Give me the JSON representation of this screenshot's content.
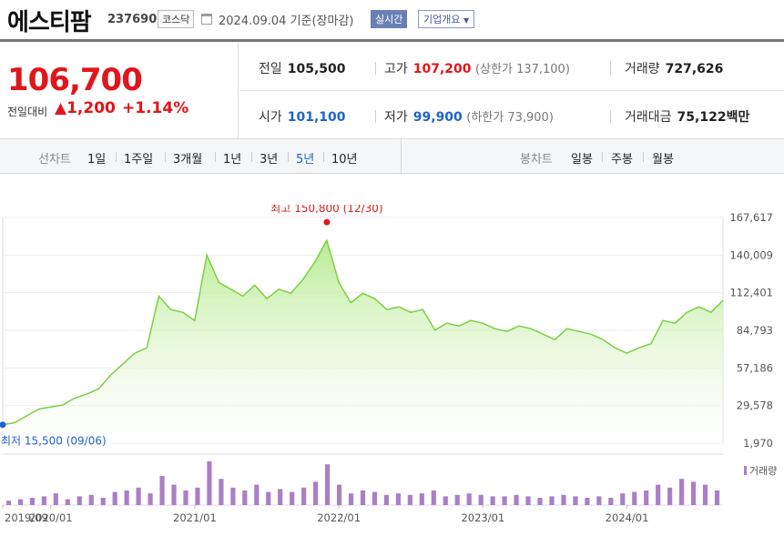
{
  "header": {
    "company": "에스티팜",
    "code": "237690",
    "market": "코스닥",
    "date": "2024.09.04  기준(장마감)",
    "realtime": "실시간",
    "company_info": "기업개요"
  },
  "price": {
    "current": "106,700",
    "change_label": "전일대비",
    "change": "▲1,200",
    "change_pct": "+1.14%",
    "prev_label": "전일",
    "prev": "105,500",
    "high_label": "고가",
    "high": "107,200",
    "upper_limit": "(상한가 137,100)",
    "volume_label": "거래량",
    "volume": "727,626",
    "open_label": "시가",
    "open": "101,100",
    "low_label": "저가",
    "low": "99,900",
    "lower_limit": "(하한가 73,900)",
    "amount_label": "거래대금",
    "amount": "75,122",
    "amount_unit": "백만"
  },
  "tabs": {
    "line_label": "선차트",
    "line_periods": [
      "1일",
      "1주일",
      "3개월",
      "1년",
      "3년",
      "5년",
      "10년"
    ],
    "selected": "5년",
    "candle_label": "봉차트",
    "candle_periods": [
      "일봉",
      "주봉",
      "월봉"
    ]
  },
  "colors": {
    "up": "#e0161b",
    "down": "#1e64c8",
    "line": "#7ccf43",
    "area_top": "#b5ea8c",
    "volume_bar": "#a97fc6"
  },
  "chart_data": {
    "type": "area",
    "y_ticks": [
      "167,617",
      "140,009",
      "112,401",
      "84,793",
      "57,186",
      "29,578",
      "1,970"
    ],
    "ylim": [
      1970,
      167617
    ],
    "x_ticks": [
      "2019/09",
      "2020/01",
      "2021/01",
      "2022/01",
      "2023/01",
      "2024/01"
    ],
    "max_label": "최고 150,800 (12/30)",
    "min_label": "최저 15,500 (09/06)",
    "volume_legend": "거래량",
    "series": [
      {
        "x": [
          "2019/09",
          "2019/10",
          "2019/11",
          "2019/12",
          "2020/01",
          "2020/02",
          "2020/03",
          "2020/04",
          "2020/05",
          "2020/06",
          "2020/07",
          "2020/08",
          "2020/09",
          "2020/10",
          "2020/11",
          "2020/12",
          "2021/01",
          "2021/02",
          "2021/03",
          "2021/04",
          "2021/05",
          "2021/06",
          "2021/07",
          "2021/08",
          "2021/09",
          "2021/10",
          "2021/11",
          "2021/12",
          "2022/01",
          "2022/02",
          "2022/03",
          "2022/04",
          "2022/05",
          "2022/06",
          "2022/07",
          "2022/08",
          "2022/09",
          "2022/10",
          "2022/11",
          "2022/12",
          "2023/01",
          "2023/02",
          "2023/03",
          "2023/04",
          "2023/05",
          "2023/06",
          "2023/07",
          "2023/08",
          "2023/09",
          "2023/10",
          "2023/11",
          "2023/12",
          "2024/01",
          "2024/02",
          "2024/03",
          "2024/04",
          "2024/05",
          "2024/06",
          "2024/07",
          "2024/08",
          "2024/09"
        ],
        "values": [
          15500,
          17000,
          22000,
          27000,
          28500,
          30000,
          35000,
          38000,
          42000,
          52000,
          60000,
          68000,
          72000,
          110000,
          100000,
          98000,
          92000,
          140000,
          120000,
          115000,
          110000,
          118000,
          108000,
          115000,
          112000,
          122000,
          135000,
          150800,
          120000,
          105000,
          112000,
          108000,
          100000,
          102000,
          98000,
          100000,
          85000,
          90000,
          88000,
          92000,
          90000,
          86000,
          84000,
          88000,
          86000,
          82000,
          78000,
          86000,
          84000,
          82000,
          78000,
          72000,
          68000,
          72000,
          75000,
          92000,
          90000,
          98000,
          102000,
          98000,
          106700
        ]
      }
    ],
    "volume": [
      3,
      4,
      5,
      6,
      8,
      4,
      6,
      7,
      5,
      9,
      10,
      12,
      8,
      20,
      14,
      10,
      12,
      30,
      18,
      12,
      10,
      14,
      9,
      11,
      9,
      12,
      16,
      28,
      14,
      8,
      10,
      9,
      7,
      8,
      7,
      8,
      10,
      6,
      7,
      8,
      7,
      6,
      6,
      7,
      6,
      5,
      6,
      7,
      6,
      5,
      6,
      5,
      8,
      9,
      10,
      14,
      12,
      18,
      16,
      14,
      10
    ]
  }
}
